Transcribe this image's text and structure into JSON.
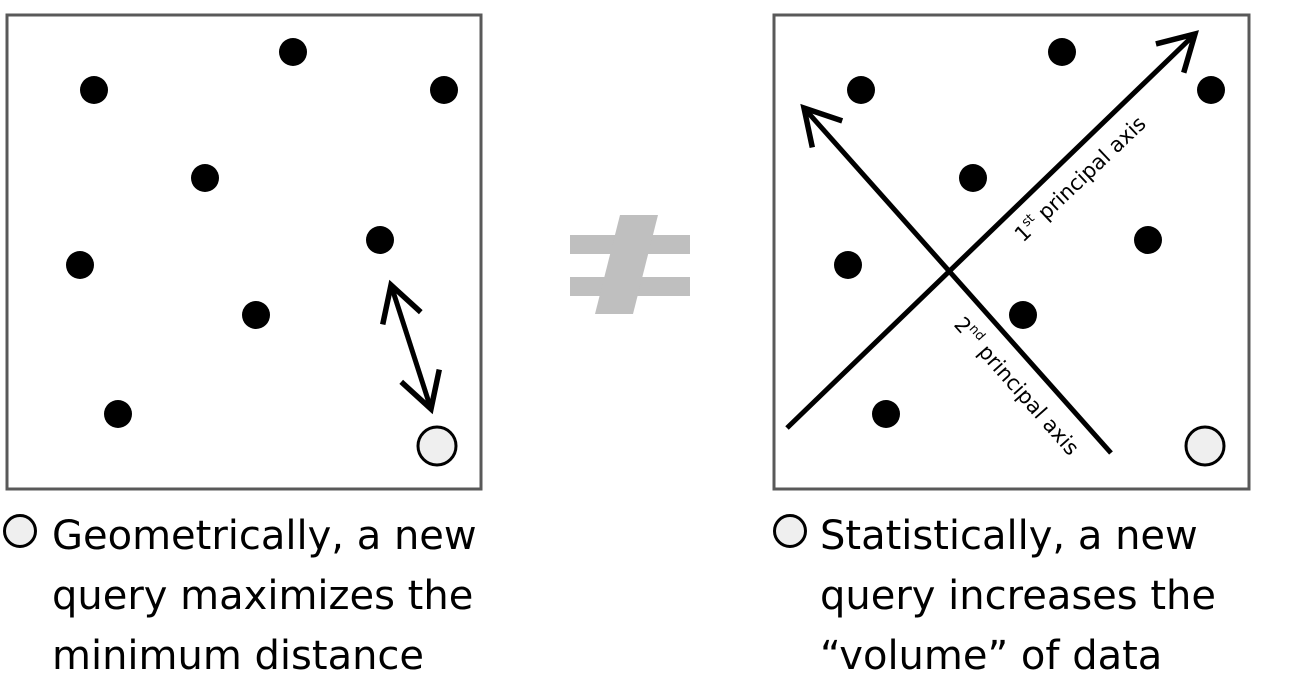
{
  "colors": {
    "point": "#000000",
    "new_query_fill": "#efefef",
    "not_equal_symbol": "#bfbfbf",
    "frame": "#595959"
  },
  "icons": {
    "relation": "not-equal-icon",
    "new_query": "hollow-circle-icon"
  },
  "left_panel": {
    "caption_lines": [
      "Geometrically, a new",
      "query maximizes the",
      "minimum distance"
    ]
  },
  "right_panel": {
    "axis1_label": {
      "num": "1",
      "sup": "st",
      "text": " principal axis"
    },
    "axis2_label": {
      "num": "2",
      "sup": "nd",
      "text": " principal axis"
    },
    "caption_lines": [
      "Statistically, a new",
      "query increases the",
      "“volume” of data"
    ]
  }
}
